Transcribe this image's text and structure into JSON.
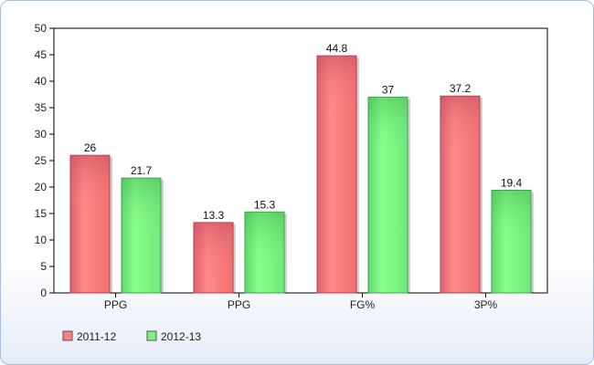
{
  "chart_data": {
    "type": "bar",
    "title": "",
    "xlabel": "",
    "ylabel": "",
    "categories": [
      "PPG",
      "PPG",
      "FG%",
      "3P%"
    ],
    "series": [
      {
        "name": "2011-12",
        "values": [
          26,
          13.3,
          44.8,
          37.2
        ],
        "color": "#ff8080"
      },
      {
        "name": "2012-13",
        "values": [
          21.7,
          15.3,
          37,
          19.4
        ],
        "color": "#80f080"
      }
    ],
    "ylim": [
      0,
      50
    ],
    "yticks": [
      0,
      5,
      10,
      15,
      20,
      25,
      30,
      35,
      40,
      45,
      50
    ],
    "grid": false,
    "legend_position": "bottom-left"
  }
}
